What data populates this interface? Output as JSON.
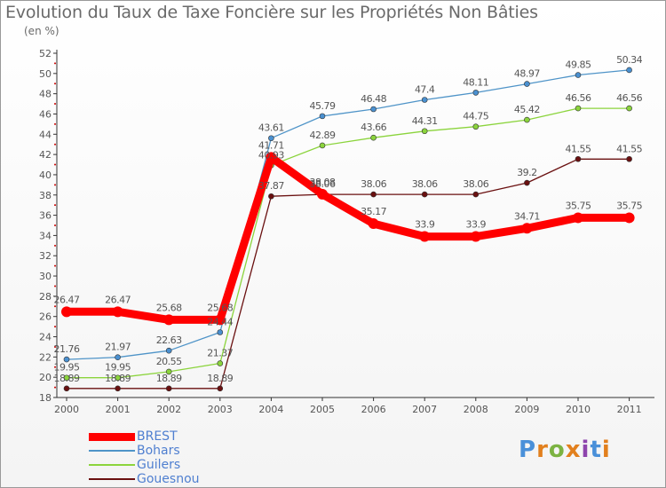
{
  "header": {
    "title": "Evolution du Taux de Taxe Foncière sur les Propriétés Non Bâties",
    "unit": "(en %)"
  },
  "brand": {
    "name": "Proxiti",
    "colors": [
      "#4a90d9",
      "#e2801e",
      "#7cb342",
      "#e2801e",
      "#8e44ad",
      "#4a90d9",
      "#e2801e"
    ]
  },
  "colors": {
    "brest": "#ff0000",
    "bohars": "#4f94c8",
    "guilers": "#8bd43c",
    "gouesnou": "#6a1010",
    "axis": "#333333",
    "grid": "#cc0000",
    "label": "#555555"
  },
  "chart_data": {
    "type": "line",
    "title": "Evolution du Taux de Taxe Foncière sur les Propriétés Non Bâties",
    "ylabel": "(en %)",
    "xlabel": "",
    "x": [
      "2000",
      "2001",
      "2002",
      "2003",
      "2004",
      "2005",
      "2006",
      "2007",
      "2008",
      "2009",
      "2010",
      "2011"
    ],
    "ylim": [
      18,
      52
    ],
    "yticks": [
      18,
      20,
      22,
      24,
      26,
      28,
      30,
      32,
      34,
      36,
      38,
      40,
      42,
      44,
      46,
      48,
      50,
      52
    ],
    "series": [
      {
        "name": "BREST",
        "values": [
          26.47,
          26.47,
          25.68,
          25.68,
          41.71,
          38.08,
          35.17,
          33.9,
          33.9,
          34.71,
          35.75,
          35.75
        ],
        "labels": [
          "26.47",
          "26.47",
          "25.68",
          "25.68",
          "41.71",
          "38.08",
          "35.17",
          "33.9",
          "33.9",
          "34.71",
          "35.75",
          "35.75"
        ]
      },
      {
        "name": "Bohars",
        "values": [
          21.76,
          21.97,
          22.63,
          24.44,
          43.61,
          45.79,
          46.48,
          47.4,
          48.11,
          48.97,
          49.85,
          50.34
        ],
        "labels": [
          "21.76",
          "21.97",
          "22.63",
          "24.44",
          "43.61",
          "45.79",
          "46.48",
          "47.4",
          "48.11",
          "48.97",
          "49.85",
          "50.34"
        ]
      },
      {
        "name": "Guilers",
        "values": [
          19.95,
          19.95,
          20.55,
          21.37,
          40.93,
          42.89,
          43.66,
          44.31,
          44.75,
          45.42,
          46.56,
          46.56
        ],
        "labels": [
          "19.95",
          "19.95",
          "20.55",
          "21.37",
          "40.93",
          "42.89",
          "43.66",
          "44.31",
          "44.75",
          "45.42",
          "46.56",
          "46.56"
        ]
      },
      {
        "name": "Gouesnou",
        "values": [
          18.89,
          18.89,
          18.89,
          18.89,
          37.87,
          38.06,
          38.06,
          38.06,
          38.06,
          39.2,
          41.55,
          41.55
        ],
        "labels": [
          "18.89",
          "18.89",
          "18.89",
          "18.89",
          "37.87",
          "38.06",
          "38.06",
          "38.06",
          "38.06",
          "39.2",
          "41.55",
          "41.55"
        ]
      }
    ],
    "legend": {
      "position": "bottom-left",
      "labels": [
        "BREST",
        "Bohars",
        "Guilers",
        "Gouesnou"
      ]
    },
    "grid": false
  }
}
